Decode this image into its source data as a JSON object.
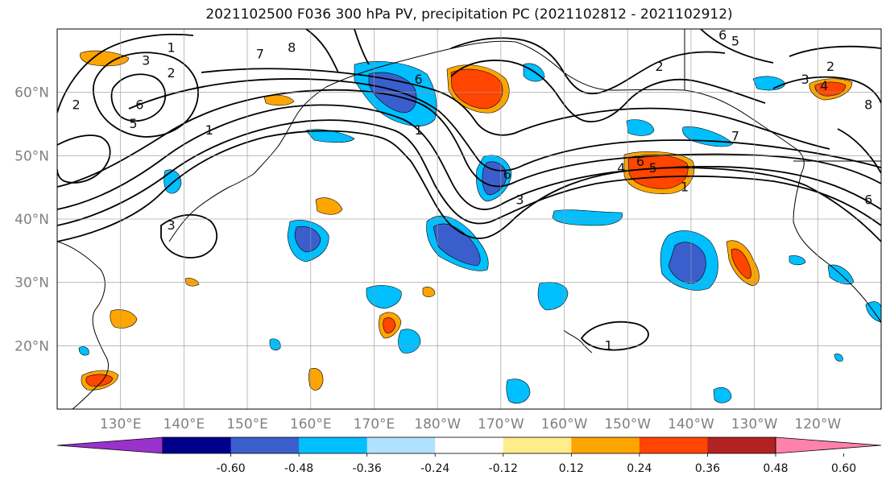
{
  "title": "2021102500 F036 300 hPa PV, precipitation PC (2021102812 - 2021102912)",
  "map": {
    "lon_range": [
      120,
      250
    ],
    "lat_range": [
      10,
      70
    ],
    "lon_ticks": [
      "130°E",
      "140°E",
      "150°E",
      "160°E",
      "170°E",
      "180°W",
      "170°W",
      "160°W",
      "150°W",
      "140°W",
      "130°W",
      "120°W"
    ],
    "lat_ticks": [
      "20°N",
      "30°N",
      "40°N",
      "50°N",
      "60°N"
    ],
    "grid": true,
    "contour_color": "#000000"
  },
  "colorbar": {
    "colors": [
      "#9932cc",
      "#00008b",
      "#3a5fcd",
      "#00bfff",
      "#b0e2ff",
      "#ffffff",
      "#ffec8b",
      "#ffa500",
      "#ff4500",
      "#b22222",
      "#ff82ab"
    ],
    "labels": [
      "-0.60",
      "-0.48",
      "-0.36",
      "-0.24",
      "-0.12",
      "0.12",
      "0.24",
      "0.36",
      "0.48",
      "0.60"
    ],
    "extend": "both"
  },
  "contour_labels": [
    {
      "text": "6",
      "lon": 177,
      "lat": 62
    },
    {
      "text": "1",
      "lon": 144,
      "lat": 54
    },
    {
      "text": "7",
      "lon": 152,
      "lat": 66
    },
    {
      "text": "8",
      "lon": 157,
      "lat": 67
    },
    {
      "text": "3",
      "lon": 134,
      "lat": 65
    },
    {
      "text": "2",
      "lon": 138,
      "lat": 63
    },
    {
      "text": "6",
      "lon": 133,
      "lat": 58
    },
    {
      "text": "5",
      "lon": 132,
      "lat": 55
    },
    {
      "text": "1",
      "lon": 138,
      "lat": 67
    },
    {
      "text": "6",
      "lon": 191,
      "lat": 47
    },
    {
      "text": "3",
      "lon": 193,
      "lat": 43
    },
    {
      "text": "1",
      "lon": 177,
      "lat": 54
    },
    {
      "text": "7",
      "lon": 227,
      "lat": 53
    },
    {
      "text": "4",
      "lon": 209,
      "lat": 48
    },
    {
      "text": "6",
      "lon": 212,
      "lat": 49
    },
    {
      "text": "5",
      "lon": 214,
      "lat": 48
    },
    {
      "text": "1",
      "lon": 219,
      "lat": 45
    },
    {
      "text": "3",
      "lon": 238,
      "lat": 62
    },
    {
      "text": "4",
      "lon": 241,
      "lat": 61
    },
    {
      "text": "2",
      "lon": 242,
      "lat": 64
    },
    {
      "text": "8",
      "lon": 248,
      "lat": 58
    },
    {
      "text": "6",
      "lon": 248,
      "lat": 43
    },
    {
      "text": "1",
      "lon": 207,
      "lat": 20
    },
    {
      "text": "3",
      "lon": 138,
      "lat": 39
    },
    {
      "text": "2",
      "lon": 123,
      "lat": 58
    },
    {
      "text": "6",
      "lon": 225,
      "lat": 69
    },
    {
      "text": "5",
      "lon": 227,
      "lat": 68
    },
    {
      "text": "2",
      "lon": 215,
      "lat": 64
    }
  ]
}
